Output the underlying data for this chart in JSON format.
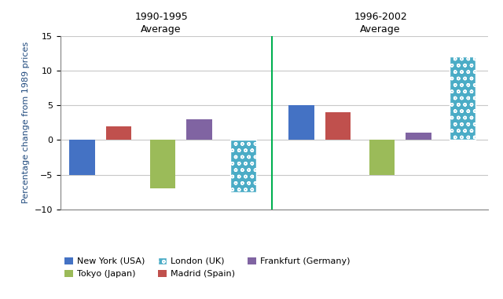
{
  "period1_label_line1": "1990-1995",
  "period1_label_line2": "Average",
  "period2_label_line1": "1996-2002",
  "period2_label_line2": "Average",
  "cities": [
    "New York (USA)",
    "Madrid (Spain)",
    "Tokyo (Japan)",
    "Frankfurt (Germany)",
    "London (UK)"
  ],
  "period1_values": [
    -5,
    2,
    -7,
    3,
    -7.5
  ],
  "period2_values": [
    5,
    4,
    -5,
    1,
    12
  ],
  "colors": [
    "#4472C4",
    "#C0504D",
    "#9BBB59",
    "#8064A2",
    "#4BACC6"
  ],
  "ylabel": "Percentage change from 1989 prices",
  "ylim": [
    -10,
    15
  ],
  "yticks": [
    -10,
    -5,
    0,
    5,
    10,
    15
  ],
  "divider_color": "#00B050",
  "background_color": "#FFFFFF",
  "grid_color": "#C8C8C8"
}
